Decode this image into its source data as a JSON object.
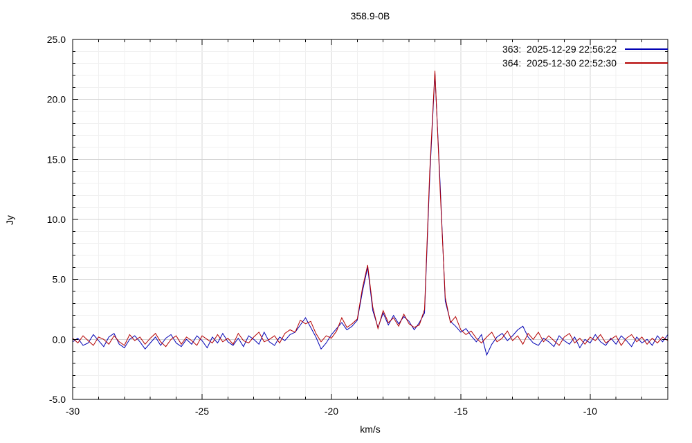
{
  "window": {
    "title": "358.9-0B"
  },
  "chart_data": {
    "type": "line",
    "title": "358.9-0B",
    "xlabel": "km/s",
    "ylabel": "Jy",
    "xlim": [
      -30,
      -7
    ],
    "ylim": [
      -5,
      25
    ],
    "x_tick_values": [
      -30,
      -25,
      -20,
      -15,
      -10
    ],
    "x_tick_labels": [
      "-30",
      "-25",
      "-20",
      "-15",
      "-10"
    ],
    "y_tick_values": [
      -5,
      0,
      5,
      10,
      15,
      20,
      25
    ],
    "y_tick_labels": [
      "-5.0",
      "0.0",
      "5.0",
      "10.0",
      "15.0",
      "20.0",
      "25.0"
    ],
    "minor_tick_step_x": 1,
    "minor_tick_step_y": 1,
    "grid": true,
    "grid_minor_color": "#f0f0f0",
    "grid_major_color": "#d4d4d4",
    "axis_color": "#000000",
    "legend_position": "top-right-inside",
    "x_start": -30.0,
    "x_step": 0.2,
    "series": [
      {
        "legend_label": "363:",
        "name": "363",
        "timestamp": "2025-12-29 22:56:22",
        "color": "#0000b4",
        "values": [
          -0.2,
          0.1,
          -0.5,
          -0.3,
          0.4,
          -0.1,
          -0.6,
          0.2,
          0.5,
          -0.4,
          -0.7,
          0.0,
          0.3,
          -0.2,
          -0.8,
          -0.3,
          0.2,
          -0.5,
          0.1,
          0.4,
          -0.3,
          -0.6,
          0.0,
          -0.4,
          0.3,
          -0.1,
          -0.7,
          0.2,
          -0.3,
          0.5,
          -0.2,
          -0.5,
          0.1,
          -0.6,
          0.3,
          0.0,
          -0.4,
          0.6,
          -0.2,
          -0.5,
          0.2,
          -0.1,
          0.4,
          0.6,
          1.2,
          1.8,
          1.0,
          0.2,
          -0.8,
          -0.3,
          0.4,
          0.9,
          1.4,
          0.8,
          1.1,
          1.6,
          4.0,
          6.0,
          2.4,
          1.0,
          2.2,
          1.2,
          2.0,
          1.3,
          1.9,
          1.5,
          0.8,
          1.4,
          2.2,
          13.5,
          22.2,
          13.0,
          3.2,
          1.5,
          1.1,
          0.6,
          0.9,
          0.3,
          -0.2,
          0.4,
          -1.3,
          -0.4,
          0.2,
          0.5,
          -0.1,
          0.3,
          0.8,
          1.1,
          0.2,
          -0.3,
          -0.5,
          0.1,
          -0.2,
          -0.6,
          0.3,
          -0.1,
          -0.4,
          0.2,
          -0.7,
          0.0,
          -0.3,
          0.4,
          -0.2,
          -0.5,
          0.1,
          -0.4,
          0.3,
          -0.1,
          -0.6,
          0.2,
          -0.3,
          0.0,
          -0.5,
          0.3,
          -0.2,
          0.4
        ]
      },
      {
        "legend_label": "364:",
        "name": "364",
        "timestamp": "2025-12-30 22:52:30",
        "color": "#b40000",
        "values": [
          0.1,
          -0.3,
          0.3,
          -0.1,
          -0.5,
          0.2,
          0.0,
          -0.4,
          0.3,
          -0.2,
          -0.5,
          0.4,
          -0.1,
          0.2,
          -0.4,
          0.1,
          0.5,
          -0.2,
          -0.6,
          0.0,
          0.3,
          -0.4,
          0.2,
          -0.1,
          -0.5,
          0.3,
          0.0,
          -0.3,
          0.4,
          -0.2,
          0.1,
          -0.4,
          0.5,
          -0.1,
          -0.3,
          0.2,
          0.6,
          -0.2,
          0.0,
          0.3,
          -0.3,
          0.5,
          0.8,
          0.6,
          1.6,
          1.3,
          1.5,
          0.5,
          -0.2,
          0.3,
          0.1,
          0.7,
          1.8,
          1.0,
          1.3,
          1.7,
          4.3,
          6.2,
          2.7,
          0.9,
          2.4,
          1.4,
          1.8,
          1.1,
          2.1,
          1.3,
          1.0,
          1.2,
          2.5,
          14.0,
          22.4,
          12.5,
          3.5,
          1.4,
          1.9,
          0.8,
          0.4,
          0.7,
          0.1,
          -0.3,
          0.2,
          0.6,
          -0.2,
          0.1,
          0.7,
          -0.1,
          0.3,
          -0.4,
          0.5,
          0.0,
          0.6,
          -0.2,
          0.3,
          -0.1,
          -0.5,
          0.2,
          0.5,
          -0.3,
          0.1,
          -0.4,
          0.2,
          -0.1,
          0.4,
          -0.3,
          0.0,
          0.3,
          -0.5,
          0.1,
          0.4,
          -0.2,
          0.2,
          -0.4,
          0.1,
          -0.3,
          0.2,
          -0.1
        ]
      }
    ]
  }
}
